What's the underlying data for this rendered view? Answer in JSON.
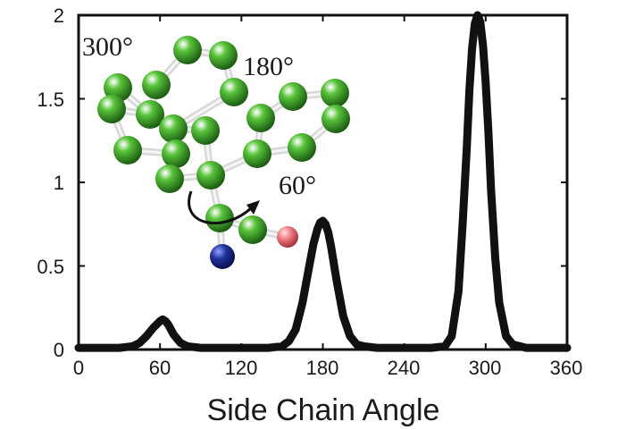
{
  "chart_data": {
    "type": "line",
    "title": "",
    "xlabel": "Side Chain Angle",
    "ylabel": "",
    "xlim": [
      0,
      360
    ],
    "ylim": [
      0,
      2
    ],
    "xticks": [
      0,
      60,
      120,
      180,
      240,
      300,
      360
    ],
    "xtick_labels": [
      "0",
      "60",
      "120",
      "180",
      "240",
      "300",
      "360"
    ],
    "yticks": [
      0,
      0.5,
      1,
      1.5,
      2
    ],
    "ytick_labels": [
      "0",
      "0.5",
      "1",
      "1.5",
      "2"
    ],
    "grid": false,
    "series": [
      {
        "color": "#111111",
        "x": [
          0,
          10,
          20,
          30,
          40,
          45,
          50,
          55,
          60,
          62,
          64,
          66,
          70,
          75,
          80,
          90,
          100,
          120,
          140,
          150,
          155,
          160,
          165,
          170,
          173,
          176,
          178,
          180,
          182,
          184,
          186,
          190,
          195,
          200,
          205,
          210,
          220,
          240,
          260,
          270,
          275,
          280,
          283,
          286,
          288,
          290,
          292,
          294,
          296,
          298,
          300,
          302,
          304,
          307,
          310,
          315,
          320,
          330,
          340,
          350,
          360
        ],
        "y": [
          0.01,
          0.01,
          0.01,
          0.01,
          0.02,
          0.04,
          0.08,
          0.13,
          0.17,
          0.18,
          0.17,
          0.15,
          0.09,
          0.04,
          0.02,
          0.01,
          0.01,
          0.01,
          0.01,
          0.02,
          0.05,
          0.12,
          0.28,
          0.5,
          0.63,
          0.72,
          0.76,
          0.77,
          0.75,
          0.7,
          0.62,
          0.42,
          0.2,
          0.08,
          0.03,
          0.02,
          0.01,
          0.01,
          0.01,
          0.02,
          0.08,
          0.35,
          0.75,
          1.2,
          1.55,
          1.8,
          1.95,
          2.0,
          1.96,
          1.82,
          1.6,
          1.3,
          0.95,
          0.55,
          0.28,
          0.08,
          0.03,
          0.01,
          0.01,
          0.01,
          0.01
        ]
      }
    ],
    "annotations": [
      "300°",
      "180°",
      "60°"
    ]
  },
  "colors": {
    "carbon": "#58c43a",
    "nitrogen": "#1f2f9a",
    "oxygen": "#f07a80",
    "bond": "#d8d8d8",
    "axis": "#111111"
  }
}
